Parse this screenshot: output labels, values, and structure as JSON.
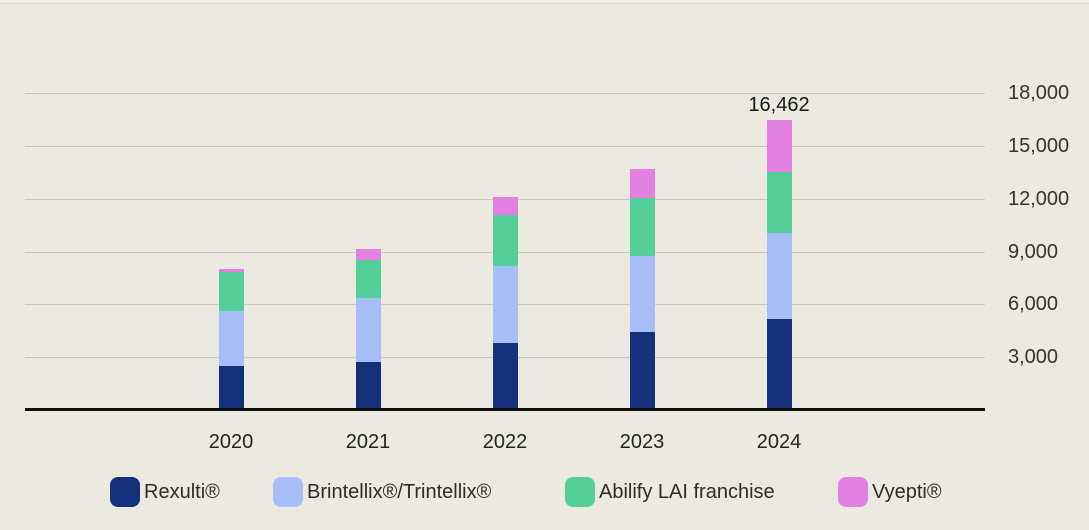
{
  "background_color": "#ECE9E0",
  "chart_data": {
    "type": "bar",
    "stacked": true,
    "title": "",
    "categories": [
      "2020",
      "2021",
      "2022",
      "2023",
      "2024"
    ],
    "series": [
      {
        "name": "Rexulti®",
        "color": "#15317C",
        "values": [
          2490,
          2730,
          3810,
          4430,
          5177
        ]
      },
      {
        "name": "Brintellix®/Trintellix®",
        "color": "#A6BDF6",
        "values": [
          3110,
          3620,
          4340,
          4340,
          4887
        ]
      },
      {
        "name": "Abilify LAI franchise",
        "color": "#54CF9A",
        "values": [
          2260,
          2190,
          2930,
          3240,
          3429
        ]
      },
      {
        "name": "Vyepti®",
        "color": "#E281E1",
        "values": [
          150,
          610,
          1000,
          1660,
          2969
        ]
      }
    ],
    "annotations": [
      {
        "category": "2024",
        "text": "16,462",
        "value": 16462
      }
    ],
    "y_axis": {
      "side": "right",
      "min": 0,
      "max": 18000,
      "tick_step": 3000,
      "tick_labels": [
        "3,000",
        "6,000",
        "9,000",
        "12,000",
        "15,000",
        "18,000"
      ]
    },
    "x_axis": {
      "tick_labels": [
        "2020",
        "2021",
        "2022",
        "2023",
        "2024"
      ]
    },
    "grid": true,
    "gridline_color": "#CBC7BE",
    "axis_color": "#0F0F0E",
    "legend_position": "bottom"
  }
}
